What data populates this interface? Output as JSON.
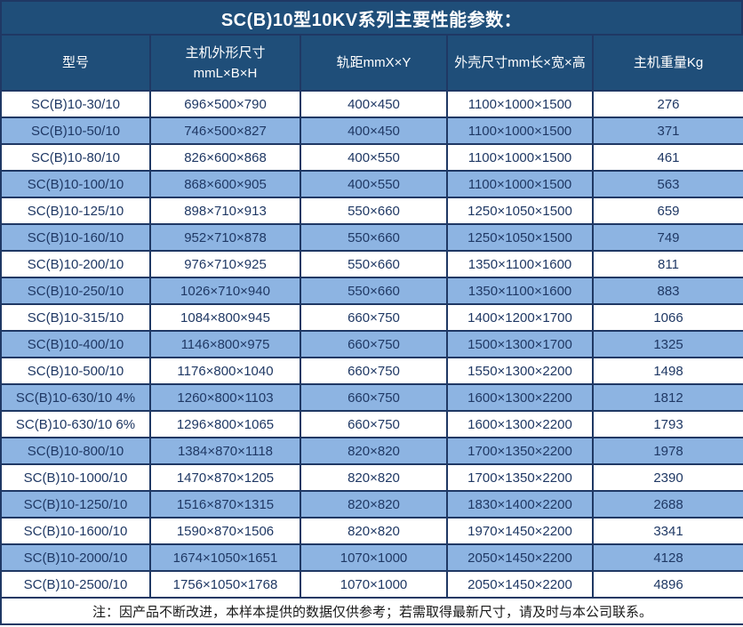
{
  "title": "SC(B)10型10KV系列主要性能参数：",
  "columns": [
    {
      "label": "型号"
    },
    {
      "label": "主机外形尺寸",
      "label2": "mmL×B×H"
    },
    {
      "label": "轨距mmX×Y"
    },
    {
      "label": "外壳尺寸mm长×宽×高"
    },
    {
      "label": "主机重量Kg"
    }
  ],
  "rows": [
    {
      "model": "SC(B)10-30/10",
      "dim": "696×500×790",
      "gauge": "400×450",
      "shell": "1100×1000×1500",
      "weight": "276"
    },
    {
      "model": "SC(B)10-50/10",
      "dim": "746×500×827",
      "gauge": "400×450",
      "shell": "1100×1000×1500",
      "weight": "371"
    },
    {
      "model": "SC(B)10-80/10",
      "dim": "826×600×868",
      "gauge": "400×550",
      "shell": "1100×1000×1500",
      "weight": "461"
    },
    {
      "model": "SC(B)10-100/10",
      "dim": "868×600×905",
      "gauge": "400×550",
      "shell": "1100×1000×1500",
      "weight": "563"
    },
    {
      "model": "SC(B)10-125/10",
      "dim": "898×710×913",
      "gauge": "550×660",
      "shell": "1250×1050×1500",
      "weight": "659"
    },
    {
      "model": "SC(B)10-160/10",
      "dim": "952×710×878",
      "gauge": "550×660",
      "shell": "1250×1050×1500",
      "weight": "749"
    },
    {
      "model": "SC(B)10-200/10",
      "dim": "976×710×925",
      "gauge": "550×660",
      "shell": "1350×1100×1600",
      "weight": "811"
    },
    {
      "model": "SC(B)10-250/10",
      "dim": "1026×710×940",
      "gauge": "550×660",
      "shell": "1350×1100×1600",
      "weight": "883"
    },
    {
      "model": "SC(B)10-315/10",
      "dim": "1084×800×945",
      "gauge": "660×750",
      "shell": "1400×1200×1700",
      "weight": "1066"
    },
    {
      "model": "SC(B)10-400/10",
      "dim": "1146×800×975",
      "gauge": "660×750",
      "shell": "1500×1300×1700",
      "weight": "1325"
    },
    {
      "model": "SC(B)10-500/10",
      "dim": "1176×800×1040",
      "gauge": "660×750",
      "shell": "1550×1300×2200",
      "weight": "1498"
    },
    {
      "model": "SC(B)10-630/10 4%",
      "dim": "1260×800×1103",
      "gauge": "660×750",
      "shell": "1600×1300×2200",
      "weight": "1812"
    },
    {
      "model": "SC(B)10-630/10 6%",
      "dim": "1296×800×1065",
      "gauge": "660×750",
      "shell": "1600×1300×2200",
      "weight": "1793"
    },
    {
      "model": "SC(B)10-800/10",
      "dim": "1384×870×1118",
      "gauge": "820×820",
      "shell": "1700×1350×2200",
      "weight": "1978"
    },
    {
      "model": "SC(B)10-1000/10",
      "dim": "1470×870×1205",
      "gauge": "820×820",
      "shell": "1700×1350×2200",
      "weight": "2390"
    },
    {
      "model": "SC(B)10-1250/10",
      "dim": "1516×870×1315",
      "gauge": "820×820",
      "shell": "1830×1400×2200",
      "weight": "2688"
    },
    {
      "model": "SC(B)10-1600/10",
      "dim": "1590×870×1506",
      "gauge": "820×820",
      "shell": "1970×1450×2200",
      "weight": "3341"
    },
    {
      "model": "SC(B)10-2000/10",
      "dim": "1674×1050×1651",
      "gauge": "1070×1000",
      "shell": "2050×1450×2200",
      "weight": "4128"
    },
    {
      "model": "SC(B)10-2500/10",
      "dim": "1756×1050×1768",
      "gauge": "1070×1000",
      "shell": "2050×1450×2200",
      "weight": "4896"
    }
  ],
  "footer_note": "注：因产品不断改进，本样本提供的数据仅供参考；若需取得最新尺寸，请及时与本公司联系。",
  "colors": {
    "header_bg": "#1F4E79",
    "alt_row_bg": "#8DB4E2",
    "border": "#1F3864",
    "header_text": "#FFFFFF",
    "body_text": "#1F3864",
    "note_text": "#1A1A1A"
  }
}
